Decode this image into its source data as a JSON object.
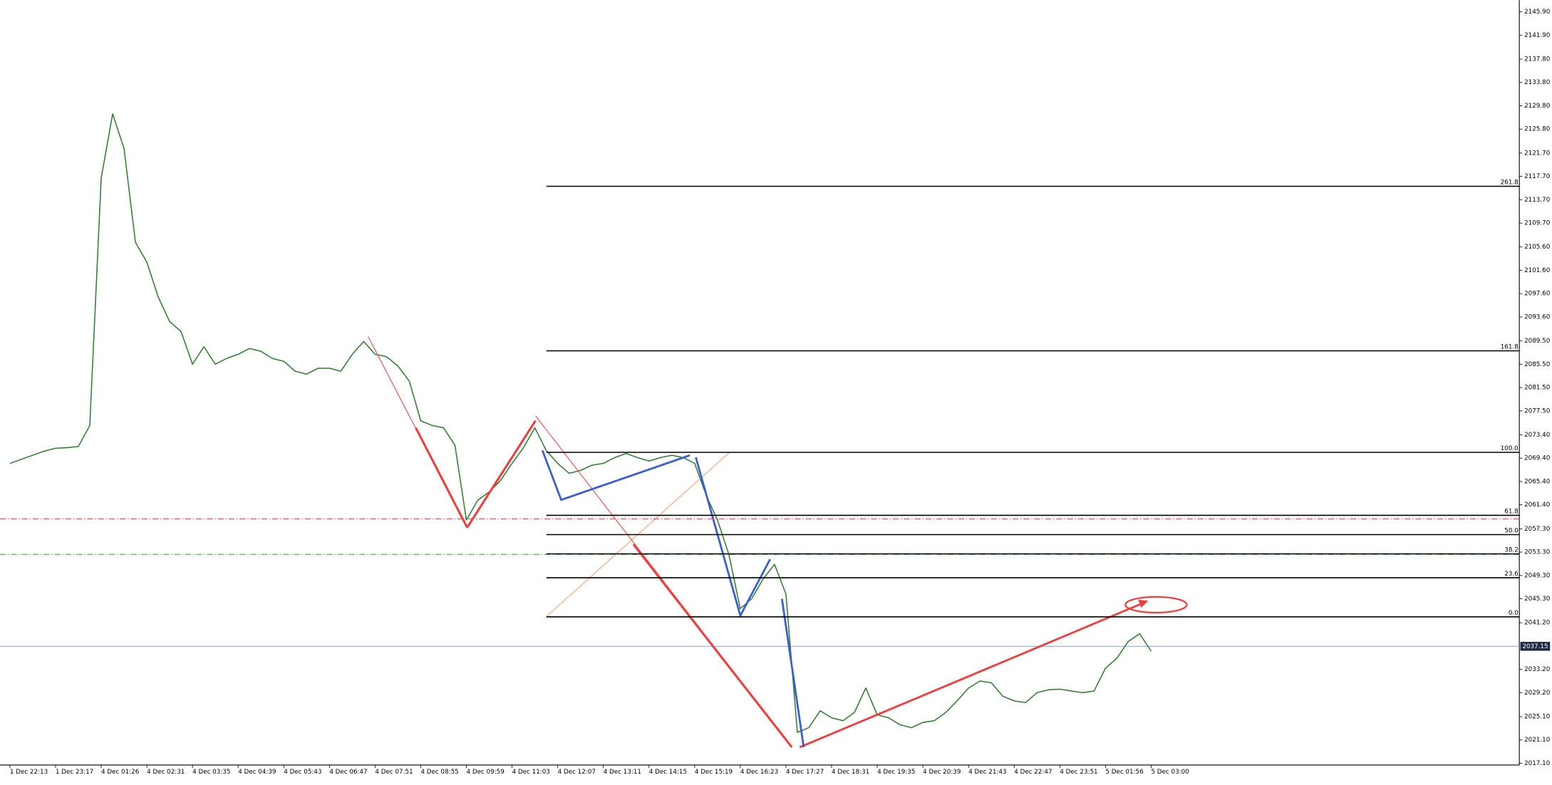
{
  "chart_data": {
    "type": "line",
    "categories": [
      "1 Dec 22:13",
      null,
      null,
      null,
      "1 Dec 23:17",
      null,
      null,
      null,
      "4 Dec 01:26",
      null,
      null,
      null,
      "4 Dec 02:31",
      null,
      null,
      null,
      "4 Dec 03:35",
      null,
      null,
      null,
      "4 Dec 04:39",
      null,
      null,
      null,
      "4 Dec 05:43",
      null,
      null,
      null,
      "4 Dec 06:47",
      null,
      null,
      null,
      "4 Dec 07:51",
      null,
      null,
      null,
      "4 Dec 08:55",
      null,
      null,
      null,
      "4 Dec 09:59",
      null,
      null,
      null,
      "4 Dec 11:03",
      null,
      null,
      null,
      "4 Dec 12:07",
      null,
      null,
      null,
      "4 Dec 13:11",
      null,
      null,
      null,
      "4 Dec 14:15",
      null,
      null,
      null,
      "4 Dec 15:19",
      null,
      null,
      null,
      "4 Dec 16:23",
      null,
      null,
      null,
      "4 Dec 17:27",
      null,
      null,
      null,
      "4 Dec 18:31",
      null,
      null,
      null,
      "4 Dec 19:35",
      null,
      null,
      null,
      "4 Dec 20:39",
      null,
      null,
      null,
      "4 Dec 21:43",
      null,
      null,
      null,
      "4 Dec 22:47",
      null,
      null,
      null,
      "4 Dec 23:51",
      null,
      null,
      null,
      "5 Dec 01:56",
      null,
      null,
      null,
      "5 Dec 03:00"
    ],
    "series": [
      {
        "color": "#2f7d2f",
        "values": [
          2068.5,
          2069.2,
          2069.9,
          2070.6,
          2071.1,
          2071.2,
          2071.4,
          2075.0,
          2117.4,
          2128.4,
          2122.5,
          2106.4,
          2103.0,
          2097.0,
          2092.8,
          2091.1,
          2085.5,
          2088.5,
          2085.5,
          2086.5,
          2087.2,
          2088.2,
          2087.7,
          2086.5,
          2086.0,
          2084.3,
          2083.8,
          2084.8,
          2084.8,
          2084.3,
          2087.2,
          2089.4,
          2087.2,
          2086.8,
          2085.2,
          2082.6,
          2075.8,
          2075.0,
          2074.6,
          2071.6,
          2058.8,
          2062.2,
          2063.6,
          2065.6,
          2068.5,
          2071.2,
          2074.6,
          2070.7,
          2068.5,
          2066.8,
          2067.3,
          2068.2,
          2068.5,
          2069.5,
          2070.2,
          2069.5,
          2068.9,
          2069.5,
          2069.9,
          2069.5,
          2068.5,
          2063.1,
          2058.8,
          2052.9,
          2043.6,
          2045.3,
          2048.7,
          2051.2,
          2046.1,
          2022.4,
          2023.2,
          2026.1,
          2024.9,
          2024.4,
          2025.8,
          2030.0,
          2025.4,
          2024.9,
          2023.7,
          2023.2,
          2024.1,
          2024.4,
          2025.8,
          2027.8,
          2030.0,
          2031.2,
          2030.9,
          2028.6,
          2027.8,
          2027.5,
          2029.2,
          2029.7,
          2029.8,
          2029.5,
          2029.2,
          2029.5,
          2033.4,
          2035.1,
          2038.0,
          2039.3,
          2036.3
        ]
      }
    ],
    "ylim": [
      2016.8,
      2147.9
    ],
    "yticks": [
      {
        "value": 2145.9,
        "label": "2145.90"
      },
      {
        "value": 2141.9,
        "label": "2141.90"
      },
      {
        "value": 2137.8,
        "label": "2137.80"
      },
      {
        "value": 2133.8,
        "label": "2133.80"
      },
      {
        "value": 2129.8,
        "label": "2129.80"
      },
      {
        "value": 2125.8,
        "label": "2125.80"
      },
      {
        "value": 2121.7,
        "label": "2121.70"
      },
      {
        "value": 2117.7,
        "label": "2117.70"
      },
      {
        "value": 2113.7,
        "label": "2113.70"
      },
      {
        "value": 2109.7,
        "label": "2109.70"
      },
      {
        "value": 2105.6,
        "label": "2105.60"
      },
      {
        "value": 2101.6,
        "label": "2101.60"
      },
      {
        "value": 2097.6,
        "label": "2097.60"
      },
      {
        "value": 2093.6,
        "label": "2093.60"
      },
      {
        "value": 2089.5,
        "label": "2089.50"
      },
      {
        "value": 2085.5,
        "label": "2085.50"
      },
      {
        "value": 2081.5,
        "label": "2081.50"
      },
      {
        "value": 2077.5,
        "label": "2077.50"
      },
      {
        "value": 2073.4,
        "label": "2073.40"
      },
      {
        "value": 2069.4,
        "label": "2069.40"
      },
      {
        "value": 2065.4,
        "label": "2065.40"
      },
      {
        "value": 2061.4,
        "label": "2061.40"
      },
      {
        "value": 2057.3,
        "label": "2057.30"
      },
      {
        "value": 2053.3,
        "label": "2053.30"
      },
      {
        "value": 2049.3,
        "label": "2049.30"
      },
      {
        "value": 2045.3,
        "label": "2045.30"
      },
      {
        "value": 2041.2,
        "label": "2041.20"
      },
      {
        "value": 2033.2,
        "label": "2033.20"
      },
      {
        "value": 2029.2,
        "label": "2029.20"
      },
      {
        "value": 2025.1,
        "label": "2025.10"
      },
      {
        "value": 2021.1,
        "label": "2021.10"
      },
      {
        "value": 2017.1,
        "label": "2017.10"
      }
    ],
    "fib_levels": [
      {
        "label": "261.8",
        "price": 2116.0
      },
      {
        "label": "161.8",
        "price": 2087.8
      },
      {
        "label": "100.0",
        "price": 2070.4
      },
      {
        "label": "61.8",
        "price": 2059.6
      },
      {
        "label": "50.0",
        "price": 2056.3
      },
      {
        "label": "38.2",
        "price": 2053.0
      },
      {
        "label": "23.6",
        "price": 2048.9
      },
      {
        "label": "0.0",
        "price": 2042.2
      }
    ],
    "dashed_levels": [
      {
        "price": 2059.0,
        "color": "#f04040"
      },
      {
        "price": 2052.9,
        "color": "#3cb43c"
      }
    ],
    "current_price": 2037.15
  }
}
